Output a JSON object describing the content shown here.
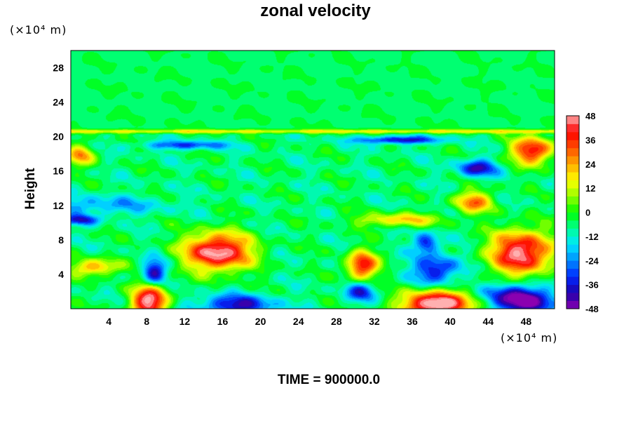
{
  "chart_data": {
    "type": "heatmap",
    "title": "zonal velocity",
    "xlabel": "",
    "ylabel": "Height",
    "x_unit_label": "(×10⁴ m)",
    "y_unit_label": "(×10⁴ m)",
    "xlim": [
      0,
      51
    ],
    "ylim": [
      0,
      30
    ],
    "x_ticks": [
      4,
      8,
      12,
      16,
      20,
      24,
      28,
      32,
      36,
      40,
      44,
      48
    ],
    "y_ticks": [
      4,
      8,
      12,
      16,
      20,
      24,
      28
    ],
    "colorbar": {
      "range": [
        -48,
        48
      ],
      "ticks": [
        48,
        36,
        24,
        12,
        0,
        -12,
        -24,
        -36,
        -48
      ],
      "step": 4
    },
    "background_value": -6,
    "features": [
      {
        "x": 15.5,
        "y": 6.6,
        "value": 52,
        "rx": 3.5,
        "ry": 2.2
      },
      {
        "x": 47.5,
        "y": 6.5,
        "value": 50,
        "rx": 3.2,
        "ry": 2.6
      },
      {
        "x": 38.5,
        "y": 0.5,
        "value": 58,
        "rx": 3.5,
        "ry": 1.6
      },
      {
        "x": 8.3,
        "y": 0.8,
        "value": 50,
        "rx": 1.9,
        "ry": 1.9
      },
      {
        "x": 30.7,
        "y": 5.0,
        "value": 42,
        "rx": 1.6,
        "ry": 1.7
      },
      {
        "x": 48.7,
        "y": 18.4,
        "value": 42,
        "rx": 2.2,
        "ry": 1.6
      },
      {
        "x": 42.5,
        "y": 12.4,
        "value": 28,
        "rx": 2.0,
        "ry": 1.3
      },
      {
        "x": 2.5,
        "y": 4.8,
        "value": 26,
        "rx": 2.5,
        "ry": 1.0
      },
      {
        "x": 1.0,
        "y": 17.8,
        "value": 24,
        "rx": 1.5,
        "ry": 1.2
      },
      {
        "x": 34.5,
        "y": 10.3,
        "value": 20,
        "rx": 4.5,
        "ry": 0.8
      },
      {
        "x": 47.8,
        "y": 0.7,
        "value": -52,
        "rx": 2.8,
        "ry": 1.4
      },
      {
        "x": 17.5,
        "y": 0.4,
        "value": -40,
        "rx": 4.0,
        "ry": 1.2
      },
      {
        "x": 8.8,
        "y": 4.3,
        "value": -42,
        "rx": 1.2,
        "ry": 1.4
      },
      {
        "x": 30.5,
        "y": 2.0,
        "value": -34,
        "rx": 1.6,
        "ry": 1.2
      },
      {
        "x": 38.5,
        "y": 4.5,
        "value": -38,
        "rx": 2.4,
        "ry": 1.7
      },
      {
        "x": 37.5,
        "y": 7.6,
        "value": -36,
        "rx": 1.3,
        "ry": 1.2
      },
      {
        "x": 42.8,
        "y": 16.3,
        "value": -40,
        "rx": 2.0,
        "ry": 1.0
      },
      {
        "x": 34.5,
        "y": 19.6,
        "value": -40,
        "rx": 4.5,
        "ry": 0.45
      },
      {
        "x": 12.0,
        "y": 19.0,
        "value": -32,
        "rx": 4.5,
        "ry": 0.5
      },
      {
        "x": 3.0,
        "y": 12.0,
        "value": -22,
        "rx": 7.0,
        "ry": 1.1
      },
      {
        "x": 1.0,
        "y": 10.3,
        "value": -34,
        "rx": 2.0,
        "ry": 0.6
      },
      {
        "x": 46.5,
        "y": 2.0,
        "value": -28,
        "rx": 3.0,
        "ry": 1.2
      }
    ],
    "upper_region": {
      "from_height": 21,
      "value": -4
    },
    "band": {
      "height": 20.6,
      "value": 30
    }
  },
  "time_label": "TIME = 900000.0",
  "colors": {
    "scale_low": "#8b00b0",
    "scale_high": "#ffb0b0"
  }
}
